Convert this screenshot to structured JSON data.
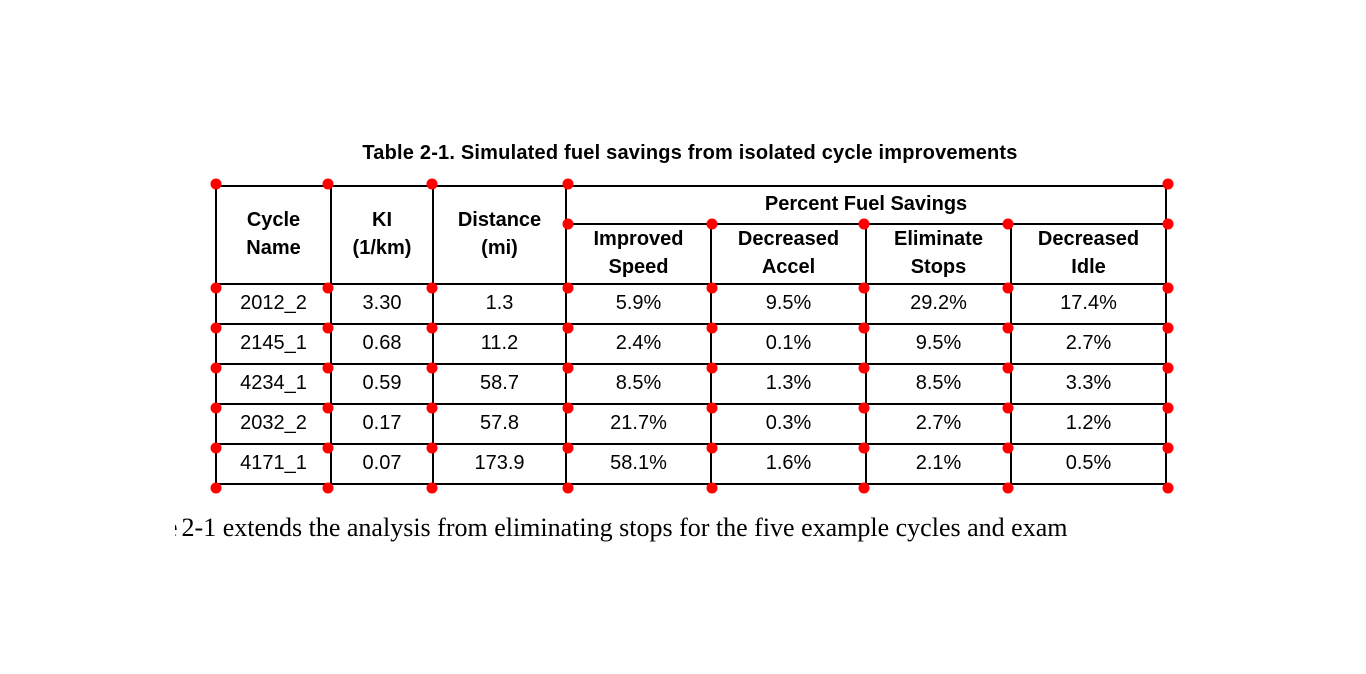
{
  "document": {
    "caption": "Table 2-1. Simulated fuel savings from isolated cycle improvements",
    "body_partial_char": "e",
    "body_text": "2-1 extends the analysis from eliminating stops for the five example cycles and exam"
  },
  "table": {
    "merged_headers": [
      "Cycle\nName",
      "KI\n(1/km)",
      "Distance\n(mi)"
    ],
    "group_header": "Percent Fuel Savings",
    "sub_headers": [
      "Improved\nSpeed",
      "Decreased\nAccel",
      "Eliminate\nStops",
      "Decreased\nIdle"
    ],
    "rows": [
      [
        "2012_2",
        "3.30",
        "1.3",
        "5.9%",
        "9.5%",
        "29.2%",
        "17.4%"
      ],
      [
        "2145_1",
        "0.68",
        "11.2",
        "2.4%",
        "0.1%",
        "9.5%",
        "2.7%"
      ],
      [
        "4234_1",
        "0.59",
        "58.7",
        "8.5%",
        "1.3%",
        "8.5%",
        "3.3%"
      ],
      [
        "2032_2",
        "0.17",
        "57.8",
        "21.7%",
        "0.3%",
        "2.7%",
        "1.2%"
      ],
      [
        "4171_1",
        "0.07",
        "173.9",
        "58.1%",
        "1.6%",
        "2.1%",
        "0.5%"
      ]
    ]
  },
  "annotations": {
    "marker_color": "#ff0000"
  },
  "chart_data": {
    "type": "table",
    "title": "Table 2-1. Simulated fuel savings from isolated cycle improvements",
    "group": {
      "label": "Percent Fuel Savings",
      "spans_columns": [
        "Improved Speed",
        "Decreased Accel",
        "Eliminate Stops",
        "Decreased Idle"
      ]
    },
    "columns": [
      "Cycle Name",
      "KI (1/km)",
      "Distance (mi)",
      "Improved Speed",
      "Decreased Accel",
      "Eliminate Stops",
      "Decreased Idle"
    ],
    "rows": [
      [
        "2012_2",
        3.3,
        1.3,
        "5.9%",
        "9.5%",
        "29.2%",
        "17.4%"
      ],
      [
        "2145_1",
        0.68,
        11.2,
        "2.4%",
        "0.1%",
        "9.5%",
        "2.7%"
      ],
      [
        "4234_1",
        0.59,
        58.7,
        "8.5%",
        "1.3%",
        "8.5%",
        "3.3%"
      ],
      [
        "2032_2",
        0.17,
        57.8,
        "21.7%",
        "0.3%",
        "2.7%",
        "1.2%"
      ],
      [
        "4171_1",
        0.07,
        173.9,
        "58.1%",
        "1.6%",
        "2.1%",
        "0.5%"
      ]
    ]
  }
}
